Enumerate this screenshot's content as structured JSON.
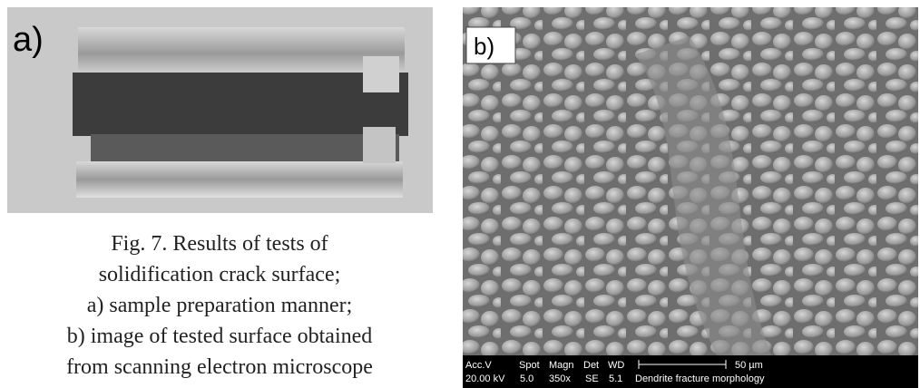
{
  "panel_a": {
    "label": "a)"
  },
  "panel_b": {
    "label": "b)",
    "sem_bar": {
      "headers": [
        "Acc.V",
        "Spot",
        "Magn",
        "Det",
        "WD"
      ],
      "values": [
        "20.00 kV",
        "5.0",
        "350x",
        "SE",
        "5.1"
      ],
      "scale": "50 µm",
      "description": "Dendrite fracture morphology"
    }
  },
  "caption": {
    "lines": [
      "Fig. 7. Results of tests of",
      "solidification crack surface;",
      "a) sample preparation manner;",
      "b) image of tested surface obtained",
      "from scanning electron microscope"
    ]
  }
}
